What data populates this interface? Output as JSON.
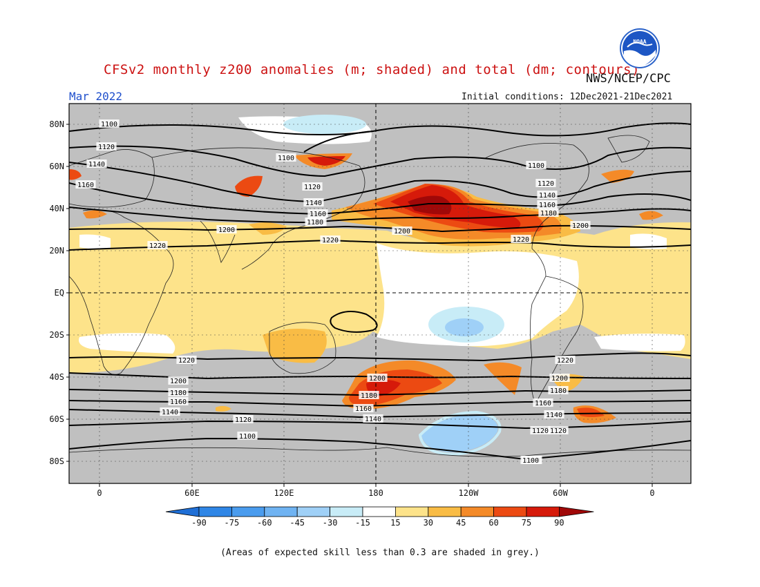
{
  "title": "CFSv2 monthly z200 anomalies (m; shaded) and total (dm; contours)",
  "agency": "NWS/NCEP/CPC",
  "month": "Mar 2022",
  "initial_conditions": "Initial conditions: 12Dec2021-21Dec2021",
  "footnote": "(Areas of expected skill less than 0.3 are shaded in grey.)",
  "logo_text": "NOAA",
  "lat_labels": [
    "80N",
    "60N",
    "40N",
    "20N",
    "EQ",
    "20S",
    "40S",
    "60S",
    "80S"
  ],
  "lon_labels": [
    "0",
    "60E",
    "120E",
    "180",
    "120W",
    "60W",
    "0"
  ],
  "colorbar": {
    "ticks": [
      "-90",
      "-75",
      "-60",
      "-45",
      "-30",
      "-15",
      "15",
      "30",
      "45",
      "60",
      "75",
      "90"
    ],
    "colors": [
      "#1f6fd6",
      "#2f86e6",
      "#4a9cee",
      "#6fb3f2",
      "#9fd0f7",
      "#c8ecf7",
      "#ffffff",
      "#fde38a",
      "#f9bc45",
      "#f48a28",
      "#ec4a12",
      "#d61a0a",
      "#a00808"
    ]
  },
  "contour_labels": [
    {
      "text": "1100"
    },
    {
      "text": "1120"
    },
    {
      "text": "1140"
    },
    {
      "text": "1160"
    },
    {
      "text": "1180"
    },
    {
      "text": "1200"
    },
    {
      "text": "1220"
    },
    {
      "text": "1220"
    },
    {
      "text": "1200"
    },
    {
      "text": "1180"
    },
    {
      "text": "1160"
    },
    {
      "text": "1140"
    },
    {
      "text": "1120"
    },
    {
      "text": "1100"
    },
    {
      "text": "1100"
    },
    {
      "text": "1120"
    },
    {
      "text": "1140"
    },
    {
      "text": "1160"
    },
    {
      "text": "1180"
    },
    {
      "text": "1200"
    },
    {
      "text": "1220"
    },
    {
      "text": "1100"
    },
    {
      "text": "1120"
    },
    {
      "text": "1140"
    },
    {
      "text": "1160"
    },
    {
      "text": "1180"
    },
    {
      "text": "1200"
    },
    {
      "text": "1220"
    },
    {
      "text": "1200"
    },
    {
      "text": "1180"
    },
    {
      "text": "1160"
    },
    {
      "text": "1140"
    },
    {
      "text": "1120"
    },
    {
      "text": "1100"
    },
    {
      "text": "1220"
    },
    {
      "text": "1200"
    },
    {
      "text": "1180"
    },
    {
      "text": "1160"
    },
    {
      "text": "1140"
    },
    {
      "text": "1120"
    },
    {
      "text": "1100"
    }
  ]
}
